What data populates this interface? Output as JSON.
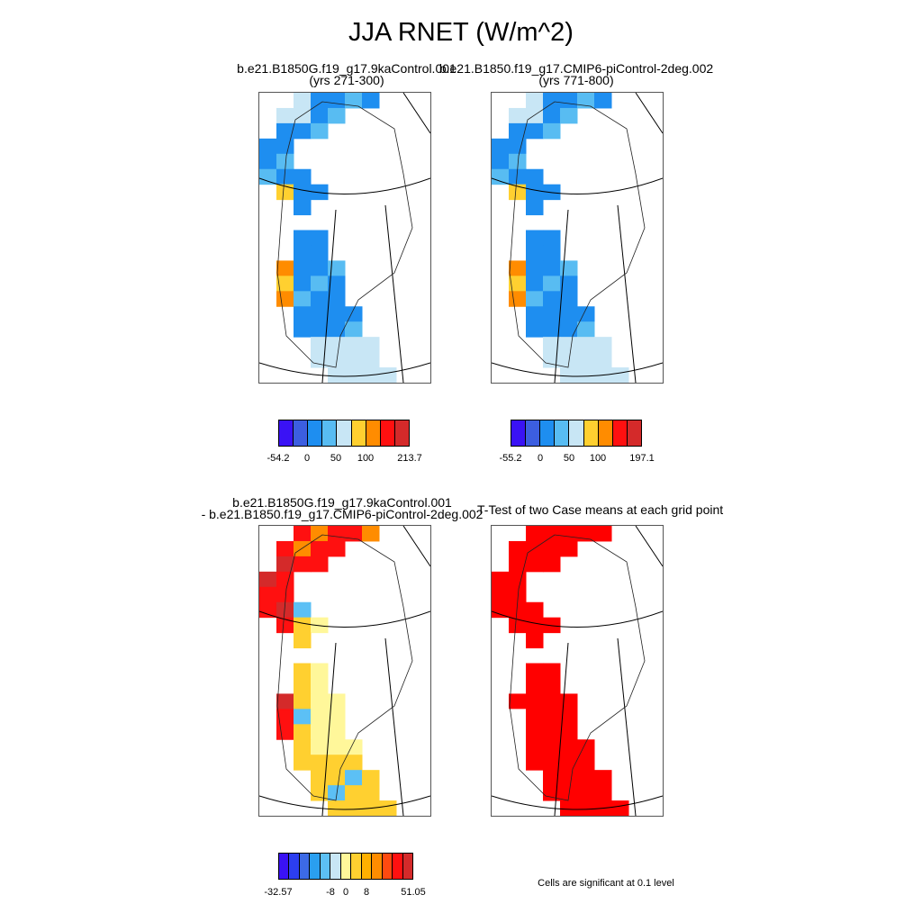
{
  "title": "JJA RNET (W/m^2)",
  "panels": [
    {
      "id": "p1",
      "line1": "b.e21.B1850G.f19_g17.9kaControl.001",
      "line2": "(yrs 271-300)"
    },
    {
      "id": "p2",
      "line1": "b.e21.B1850.f19_g17.CMIP6-piControl-2deg.002",
      "line2": "(yrs 771-800)"
    },
    {
      "id": "p3",
      "line1": "b.e21.B1850G.f19_g17.9kaControl.001",
      "line2": "- b.e21.B1850.f19_g17.CMIP6-piControl-2deg.002"
    },
    {
      "id": "p4",
      "line1": "T-Test of two Case means at each grid point",
      "line2": ""
    }
  ],
  "colorbars": {
    "cb1": {
      "colors": [
        "#3a12f5",
        "#3c5ee0",
        "#1e8ef0",
        "#58bcf2",
        "#c8e6f5",
        "#ffd030",
        "#ff8c00",
        "#ff1010",
        "#d42a2a"
      ],
      "labels": [
        "-54.2",
        "0",
        "50",
        "100",
        "213.7"
      ]
    },
    "cb2": {
      "colors": [
        "#3a12f5",
        "#3c5ee0",
        "#1e8ef0",
        "#58bcf2",
        "#c8e6f5",
        "#ffd030",
        "#ff8c00",
        "#ff1010",
        "#d42a2a"
      ],
      "labels": [
        "-55.2",
        "0",
        "50",
        "100",
        "197.1"
      ]
    },
    "cb3": {
      "colors": [
        "#3a12f5",
        "#2c3ef0",
        "#3c6ae6",
        "#2a9ff0",
        "#5cc0f5",
        "#c8e6f5",
        "#fff79a",
        "#ffd030",
        "#ffb000",
        "#ff8c00",
        "#ff4a10",
        "#ff1010",
        "#d42a2a"
      ],
      "labels": [
        "-32.57",
        "-8",
        "0",
        "8",
        "51.05"
      ]
    }
  },
  "footnote": "Cells are significant at 0.1 level"
}
